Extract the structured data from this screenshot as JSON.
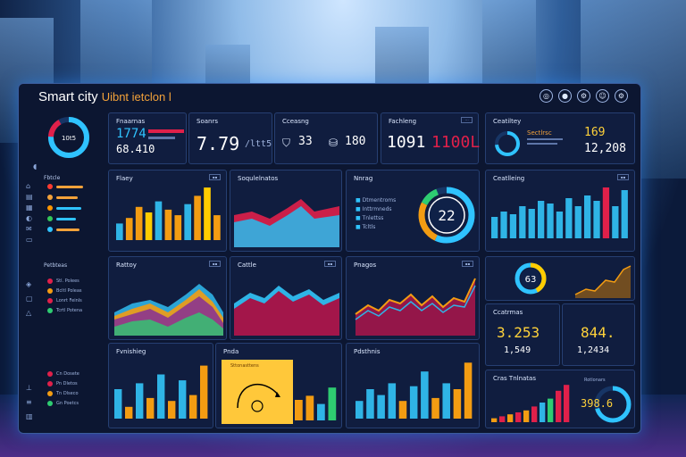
{
  "app": {
    "title": "Smart city",
    "subtitle": "Uibnt ietclon l"
  },
  "top_icons": [
    "globe-icon",
    "apple-icon",
    "gear-icon",
    "user-icon",
    "settings-icon"
  ],
  "sidebar": {
    "sections": [
      {
        "label": "Fbtcle"
      },
      {
        "label": "Petbteas"
      }
    ],
    "rows_a": [
      {
        "color": "#ff3b30",
        "bar": "#f3a23a",
        "w": 30
      },
      {
        "color": "#f3a23a",
        "bar": "#f3a23a",
        "w": 24
      },
      {
        "color": "#ff9500",
        "bar": "#2fc3ff",
        "w": 28
      },
      {
        "color": "#34c759",
        "bar": "#2fc3ff",
        "w": 22
      },
      {
        "color": "#2fc3ff",
        "bar": "#f3a23a",
        "w": 26
      }
    ],
    "rows_b": [
      {
        "text": "Stl. Polees"
      },
      {
        "text": "Bcltl Poleas"
      },
      {
        "text": "Lonrt Feinls"
      },
      {
        "text": "Tcrtl Potena"
      }
    ],
    "rows_c": [
      {
        "text": "Cn Dosete"
      },
      {
        "text": "Pn Dletos"
      },
      {
        "text": "Tn Dlseco"
      },
      {
        "text": "Gn Poetcs"
      }
    ]
  },
  "kpis": [
    {
      "title": "Fnaarnas",
      "value": "1774",
      "value2": "68.410"
    },
    {
      "title": "Soanrs",
      "value": "7.79",
      "unit": "/ltt5"
    },
    {
      "title": "Cceasng",
      "value": "33",
      "value2": "180"
    },
    {
      "title": "Fachleng",
      "value": "1091",
      "value2": "1100L"
    },
    {
      "title": "Ceatiltey",
      "value": "169",
      "value2": "12,208",
      "small": "Sectlrsc"
    }
  ],
  "kpi_ring": {
    "label": "10t5"
  },
  "panels": {
    "p1": {
      "title": "Flaey",
      "btn": "▪▪"
    },
    "p2": {
      "title": "Soqulelnatos",
      "btn": "▪▪"
    },
    "p3": {
      "title": "Nnrag",
      "btn": "▪▪",
      "gauge_value": "22",
      "list": [
        "Dtmentroms",
        "Inttrmneds",
        "Tnlettss",
        "Tcltls"
      ]
    },
    "p4": {
      "title": "Ceatlleing",
      "btn": "▪▪"
    },
    "p5": {
      "title": "Rattoy",
      "btn": "▪▪"
    },
    "p6": {
      "title": "Cattle",
      "btn": "▪▪"
    },
    "p7": {
      "title": "Pnagos",
      "btn": "▪▪"
    },
    "p8": {
      "title": "Fvnishieg",
      "btn": "▪▪"
    },
    "p9": {
      "title": "Pnda",
      "btn": "▪▪",
      "note": "Sttonasttens"
    },
    "p10": {
      "title": "Pdsthnis",
      "btn": "▪▪"
    },
    "p11": {
      "title": "Ccatrmas",
      "value": "3.253",
      "value2": "1,549"
    },
    "p12": {
      "title": "",
      "value": "844.",
      "value2": "1,2434"
    },
    "p13": {
      "title": "Cras Tnlnatas",
      "value": "398.6",
      "small": "Rotlonars"
    },
    "ring_small": {
      "label": "63"
    }
  },
  "colors": {
    "cyan": "#2fb4e6",
    "orange": "#f39c12",
    "yellow": "#ffcc00",
    "red": "#e0204a",
    "green": "#2ecc71",
    "purple": "#8e3a8a"
  }
}
